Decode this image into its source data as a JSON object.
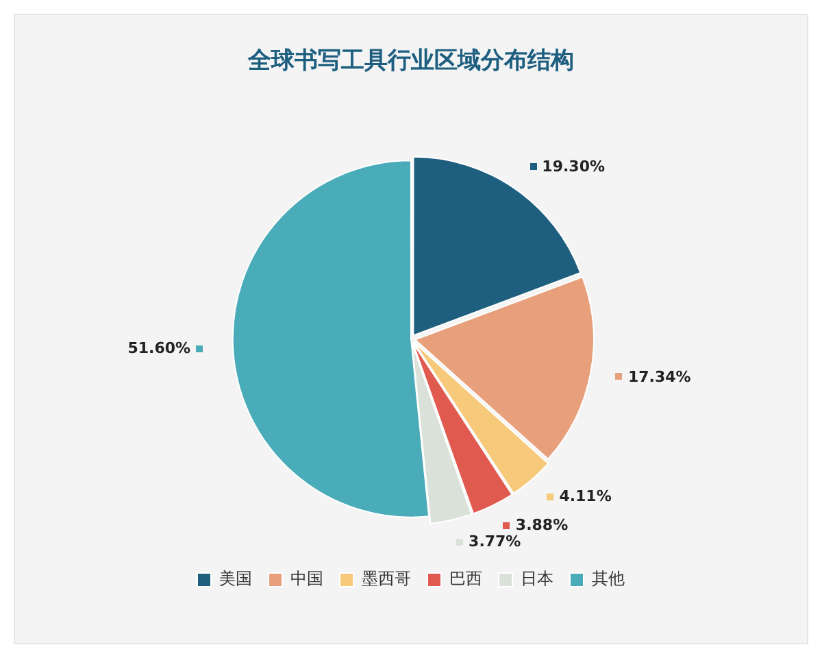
{
  "chart_data": {
    "type": "pie",
    "title": "全球书写工具行业区域分布结构",
    "categories": [
      "美国",
      "中国",
      "墨西哥",
      "巴西",
      "日本",
      "其他"
    ],
    "values": [
      19.3,
      17.34,
      4.11,
      3.88,
      3.77,
      51.6
    ],
    "colors": [
      "#1e5f80",
      "#e8a07c",
      "#f7c97a",
      "#e05a50",
      "#d9e1d9",
      "#4aacb9"
    ],
    "value_labels": [
      "19.30%",
      "17.34%",
      "4.11%",
      "3.88%",
      "3.77%",
      "51.60%"
    ],
    "legend": "bottom"
  }
}
